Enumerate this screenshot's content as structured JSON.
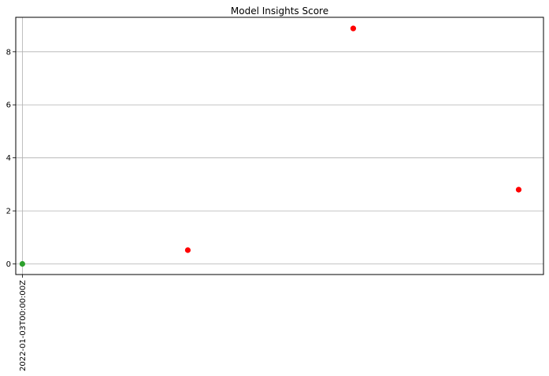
{
  "chart_data": {
    "type": "scatter",
    "title": "Model Insights Score",
    "xlabel": "",
    "ylabel": "",
    "x_tick_labels": [
      "2022-01-03T00:00:00Z"
    ],
    "y_ticks": [
      0,
      2,
      4,
      6,
      8
    ],
    "ylim": [
      -0.4,
      9.3
    ],
    "grid": true,
    "points": [
      {
        "x": 0,
        "y": 0.0,
        "color": "#2ca02c"
      },
      {
        "x": 1,
        "y": 0.52,
        "color": "#ff0000"
      },
      {
        "x": 2,
        "y": 8.88,
        "color": "#ff0000"
      },
      {
        "x": 3,
        "y": 2.8,
        "color": "#ff0000"
      }
    ],
    "xlim": [
      -0.04,
      3.15
    ]
  }
}
